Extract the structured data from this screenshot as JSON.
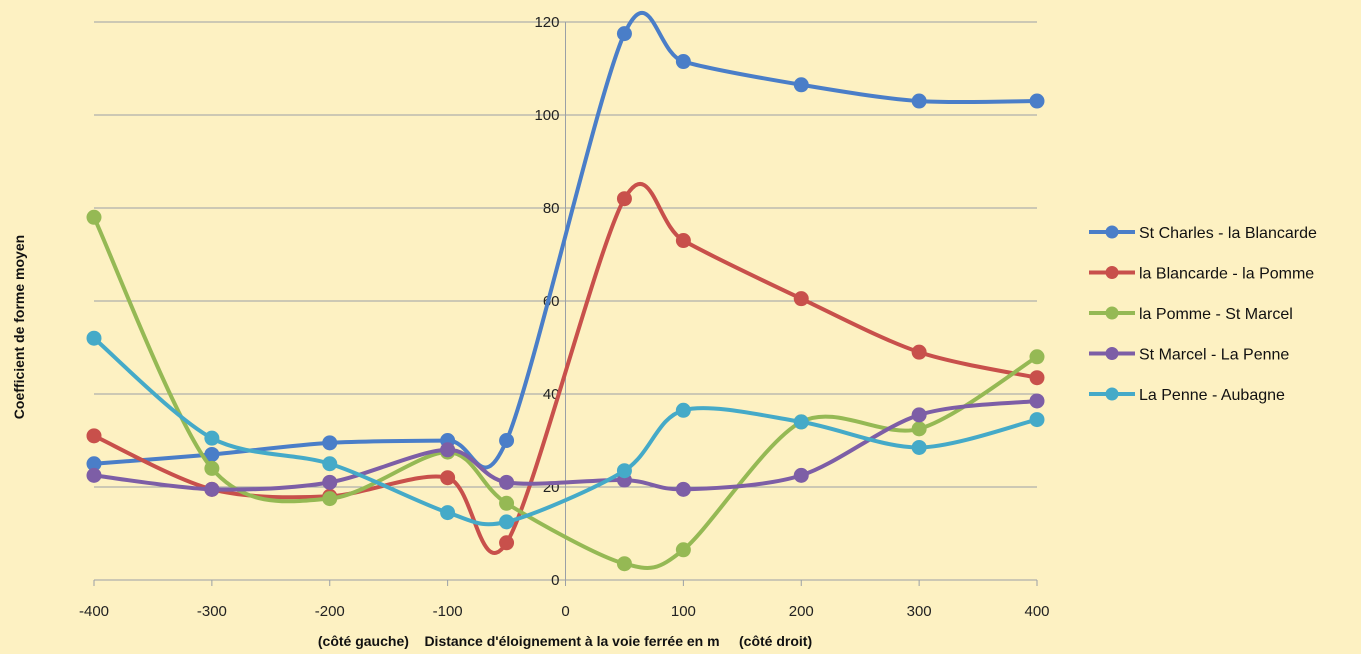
{
  "chart_data": {
    "type": "line",
    "title": "",
    "xlabel": "(côté gauche)    Distance d'éloignement à la voie ferrée en m     (côté droit)",
    "ylabel": "Coefficient de forme moyen",
    "xlim": [
      -400,
      400
    ],
    "ylim": [
      0,
      120
    ],
    "x_ticks": [
      -400,
      -300,
      -200,
      -100,
      0,
      100,
      200,
      300,
      400
    ],
    "y_ticks": [
      0,
      20,
      40,
      60,
      80,
      100,
      120
    ],
    "grid": "horizontal",
    "legend_position": "right",
    "smooth": true,
    "x": [
      -400,
      -300,
      -200,
      -100,
      -50,
      50,
      100,
      200,
      300,
      400
    ],
    "series": [
      {
        "name": "St Charles - la Blancarde",
        "color": "#4a7ec8",
        "values": [
          25,
          27,
          29.5,
          30,
          30,
          117.5,
          111.5,
          106.5,
          103,
          103
        ]
      },
      {
        "name": "la Blancarde - la Pomme",
        "color": "#c8504b",
        "values": [
          31,
          19.5,
          18,
          22,
          8,
          82,
          73,
          60.5,
          49,
          43.5
        ]
      },
      {
        "name": "la Pomme - St Marcel",
        "color": "#95b954",
        "values": [
          78,
          24,
          17.5,
          27.5,
          16.5,
          3.5,
          6.5,
          34,
          32.5,
          48
        ]
      },
      {
        "name": "St Marcel - La Penne",
        "color": "#7d5ea6",
        "values": [
          22.5,
          19.5,
          21,
          28,
          21,
          21.5,
          19.5,
          22.5,
          35.5,
          38.5
        ]
      },
      {
        "name": "La Penne - Aubagne",
        "color": "#45aac8",
        "values": [
          52,
          30.5,
          25,
          14.5,
          12.5,
          23.5,
          36.5,
          34,
          28.5,
          34.5
        ]
      }
    ]
  }
}
